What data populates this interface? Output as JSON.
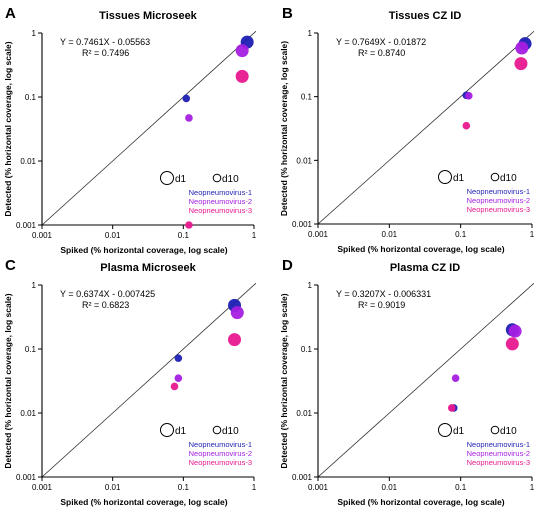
{
  "chart_data": [
    {
      "panel_label": "A",
      "type": "scatter",
      "title": "Tissues Microseek",
      "xlabel": "Spiked (% horizontal coverage, log scale)",
      "ylabel": "Detected (% horizontal coverage, log scale)",
      "x_scale": "log",
      "y_scale": "log",
      "xlim": [
        0.001,
        1
      ],
      "ylim": [
        0.001,
        1
      ],
      "x_ticks": [
        "0.001",
        "0.01",
        "0.1",
        "1"
      ],
      "y_ticks": [
        "0.001",
        "0.01",
        "0.1",
        "1"
      ],
      "equation": "Y = 0.7461X - 0.05563",
      "r_squared": "R² = 0.7496",
      "size_legend": [
        "d1",
        "d10"
      ],
      "series": [
        {
          "name": "Neopneumovirus-1",
          "color": "#1f1fb4",
          "points": [
            {
              "x": 0.11,
              "y": 0.095,
              "size": "d10"
            },
            {
              "x": 0.8,
              "y": 0.72,
              "size": "d1"
            }
          ]
        },
        {
          "name": "Neopneumovirus-2",
          "color": "#a51ee0",
          "points": [
            {
              "x": 0.12,
              "y": 0.047,
              "size": "d10"
            },
            {
              "x": 0.68,
              "y": 0.53,
              "size": "d1"
            }
          ]
        },
        {
          "name": "Neopneumovirus-3",
          "color": "#e8188e",
          "points": [
            {
              "x": 0.12,
              "y": 0.001,
              "size": "d10"
            },
            {
              "x": 0.68,
              "y": 0.21,
              "size": "d1"
            }
          ]
        }
      ]
    },
    {
      "panel_label": "B",
      "type": "scatter",
      "title": "Tissues CZ ID",
      "xlabel": "Spiked (% horizontal coverage, log scale)",
      "ylabel": "Detected (% horizontal coverage, log scale)",
      "x_scale": "log",
      "y_scale": "log",
      "xlim": [
        0.001,
        1
      ],
      "ylim": [
        0.001,
        1
      ],
      "x_ticks": [
        "0.001",
        "0.01",
        "0.1",
        "1"
      ],
      "y_ticks": [
        "0.001",
        "0.01",
        "0.1",
        "1"
      ],
      "equation": "Y = 0.7649X - 0.01872",
      "r_squared": "R² = 0.8740",
      "size_legend": [
        "d1",
        "d10"
      ],
      "series": [
        {
          "name": "Neopneumovirus-1",
          "color": "#1f1fb4",
          "points": [
            {
              "x": 0.12,
              "y": 0.105,
              "size": "d10"
            },
            {
              "x": 0.8,
              "y": 0.68,
              "size": "d1"
            }
          ]
        },
        {
          "name": "Neopneumovirus-2",
          "color": "#a51ee0",
          "points": [
            {
              "x": 0.13,
              "y": 0.103,
              "size": "d10"
            },
            {
              "x": 0.72,
              "y": 0.58,
              "size": "d1"
            }
          ]
        },
        {
          "name": "Neopneumovirus-3",
          "color": "#e8188e",
          "points": [
            {
              "x": 0.12,
              "y": 0.035,
              "size": "d10"
            },
            {
              "x": 0.7,
              "y": 0.33,
              "size": "d1"
            }
          ]
        }
      ]
    },
    {
      "panel_label": "C",
      "type": "scatter",
      "title": "Plasma Microseek",
      "xlabel": "Spiked (% horizontal coverage, log scale)",
      "ylabel": "Detected (% horizontal coverage, log scale)",
      "x_scale": "log",
      "y_scale": "log",
      "xlim": [
        0.001,
        1
      ],
      "ylim": [
        0.001,
        1
      ],
      "x_ticks": [
        "0.001",
        "0.01",
        "0.1",
        "1"
      ],
      "y_ticks": [
        "0.001",
        "0.01",
        "0.1",
        "1"
      ],
      "equation": "Y = 0.6374X - 0.007425",
      "r_squared": "R² = 0.6823",
      "size_legend": [
        "d1",
        "d10"
      ],
      "series": [
        {
          "name": "Neopneumovirus-1",
          "color": "#1f1fb4",
          "points": [
            {
              "x": 0.085,
              "y": 0.072,
              "size": "d10"
            },
            {
              "x": 0.53,
              "y": 0.48,
              "size": "d1"
            }
          ]
        },
        {
          "name": "Neopneumovirus-2",
          "color": "#a51ee0",
          "points": [
            {
              "x": 0.085,
              "y": 0.035,
              "size": "d10"
            },
            {
              "x": 0.58,
              "y": 0.37,
              "size": "d1"
            }
          ]
        },
        {
          "name": "Neopneumovirus-3",
          "color": "#e8188e",
          "points": [
            {
              "x": 0.075,
              "y": 0.026,
              "size": "d10"
            },
            {
              "x": 0.53,
              "y": 0.14,
              "size": "d1"
            }
          ]
        }
      ]
    },
    {
      "panel_label": "D",
      "type": "scatter",
      "title": "Plasma CZ ID",
      "xlabel": "Spiked (% horizontal coverage, log scale)",
      "ylabel": "Detected (% horizontal coverage, log scale)",
      "x_scale": "log",
      "y_scale": "log",
      "xlim": [
        0.001,
        1
      ],
      "ylim": [
        0.001,
        1
      ],
      "x_ticks": [
        "0.001",
        "0.01",
        "0.1",
        "1"
      ],
      "y_ticks": [
        "0.001",
        "0.01",
        "0.1",
        "1"
      ],
      "equation": "Y = 0.3207X - 0.006331",
      "r_squared": "R² = 0.9019",
      "size_legend": [
        "d1",
        "d10"
      ],
      "series": [
        {
          "name": "Neopneumovirus-1",
          "color": "#1f1fb4",
          "points": [
            {
              "x": 0.08,
              "y": 0.012,
              "size": "d10"
            },
            {
              "x": 0.53,
              "y": 0.2,
              "size": "d1"
            }
          ]
        },
        {
          "name": "Neopneumovirus-2",
          "color": "#a51ee0",
          "points": [
            {
              "x": 0.085,
              "y": 0.035,
              "size": "d10"
            },
            {
              "x": 0.58,
              "y": 0.19,
              "size": "d1"
            }
          ]
        },
        {
          "name": "Neopneumovirus-3",
          "color": "#e8188e",
          "points": [
            {
              "x": 0.075,
              "y": 0.012,
              "size": "d10"
            },
            {
              "x": 0.53,
              "y": 0.12,
              "size": "d1"
            }
          ]
        }
      ]
    }
  ]
}
